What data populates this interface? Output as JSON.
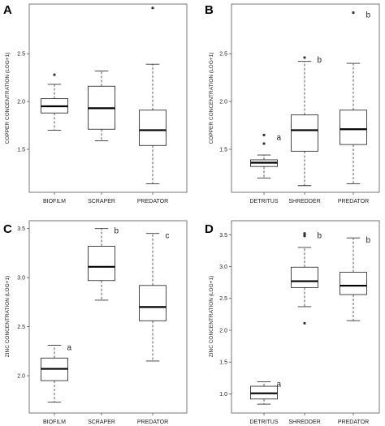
{
  "chart_data": [
    {
      "type": "box",
      "panel": "A",
      "ylabel": "COPPER CONCENTRATION (LOG+1)",
      "ylim": [
        1.05,
        3.02
      ],
      "yticks": [
        1.5,
        2.0,
        2.5
      ],
      "ytick_labels": [
        "1.5",
        "2.0",
        "2.5"
      ],
      "categories": [
        "BIOFILM",
        "SCRAPER",
        "PREDATOR"
      ],
      "boxes": [
        {
          "min": 1.7,
          "q1": 1.88,
          "median": 1.95,
          "q3": 2.03,
          "max": 2.18,
          "outliers": [
            2.28
          ],
          "sig": ""
        },
        {
          "min": 1.59,
          "q1": 1.71,
          "median": 1.93,
          "q3": 2.16,
          "max": 2.32,
          "outliers": [],
          "sig": ""
        },
        {
          "min": 1.14,
          "q1": 1.54,
          "median": 1.7,
          "q3": 1.91,
          "max": 2.39,
          "outliers": [
            2.98
          ],
          "sig": ""
        }
      ]
    },
    {
      "type": "box",
      "panel": "B",
      "ylabel": "COPPER CONCENTRATION (LOG+1)",
      "ylim": [
        1.05,
        3.02
      ],
      "yticks": [
        1.5,
        2.0,
        2.5
      ],
      "ytick_labels": [
        "1.5",
        "2.0",
        "2.5"
      ],
      "categories": [
        "DETRITUS",
        "SHREDDER",
        "PREDATOR"
      ],
      "boxes": [
        {
          "min": 1.2,
          "q1": 1.32,
          "median": 1.36,
          "q3": 1.39,
          "max": 1.44,
          "outliers": [
            1.56,
            1.65
          ],
          "sig": "a"
        },
        {
          "min": 1.12,
          "q1": 1.48,
          "median": 1.7,
          "q3": 1.86,
          "max": 2.42,
          "outliers": [
            2.46
          ],
          "sig": "b"
        },
        {
          "min": 1.14,
          "q1": 1.55,
          "median": 1.71,
          "q3": 1.91,
          "max": 2.4,
          "outliers": [
            2.93
          ],
          "sig": "b"
        }
      ]
    },
    {
      "type": "box",
      "panel": "C",
      "ylabel": "ZINC CONCENTRATION (LOG+1)",
      "ylim": [
        1.62,
        3.58
      ],
      "yticks": [
        2.0,
        2.5,
        3.0,
        3.5
      ],
      "ytick_labels": [
        "2.0",
        "2.5",
        "3.0",
        "3.5"
      ],
      "categories": [
        "BIOFILM",
        "SCRAPER",
        "PREDATOR"
      ],
      "boxes": [
        {
          "min": 1.73,
          "q1": 1.95,
          "median": 2.07,
          "q3": 2.18,
          "max": 2.31,
          "outliers": [],
          "sig": "a"
        },
        {
          "min": 2.77,
          "q1": 2.97,
          "median": 3.11,
          "q3": 3.32,
          "max": 3.5,
          "outliers": [],
          "sig": "b"
        },
        {
          "min": 2.15,
          "q1": 2.56,
          "median": 2.7,
          "q3": 2.92,
          "max": 3.45,
          "outliers": [],
          "sig": "c"
        }
      ]
    },
    {
      "type": "box",
      "panel": "D",
      "ylabel": "ZINC CONCENTRATION (LOG+1)",
      "ylim": [
        0.7,
        3.72
      ],
      "yticks": [
        1.0,
        1.5,
        2.0,
        2.5,
        3.0,
        3.5
      ],
      "ytick_labels": [
        "1.0",
        "1.5",
        "2.0",
        "2.5",
        "3.0",
        "3.5"
      ],
      "categories": [
        "DETRITUS",
        "SHREDDER",
        "PREDATOR"
      ],
      "boxes": [
        {
          "min": 0.84,
          "q1": 0.92,
          "median": 1.01,
          "q3": 1.12,
          "max": 1.19,
          "outliers": [],
          "sig": "a"
        },
        {
          "min": 2.37,
          "q1": 2.67,
          "median": 2.77,
          "q3": 2.99,
          "max": 3.3,
          "outliers": [
            2.11,
            3.48,
            3.5,
            3.52
          ],
          "sig": "b"
        },
        {
          "min": 2.15,
          "q1": 2.56,
          "median": 2.7,
          "q3": 2.91,
          "max": 3.45,
          "outliers": [],
          "sig": "b"
        }
      ]
    }
  ]
}
